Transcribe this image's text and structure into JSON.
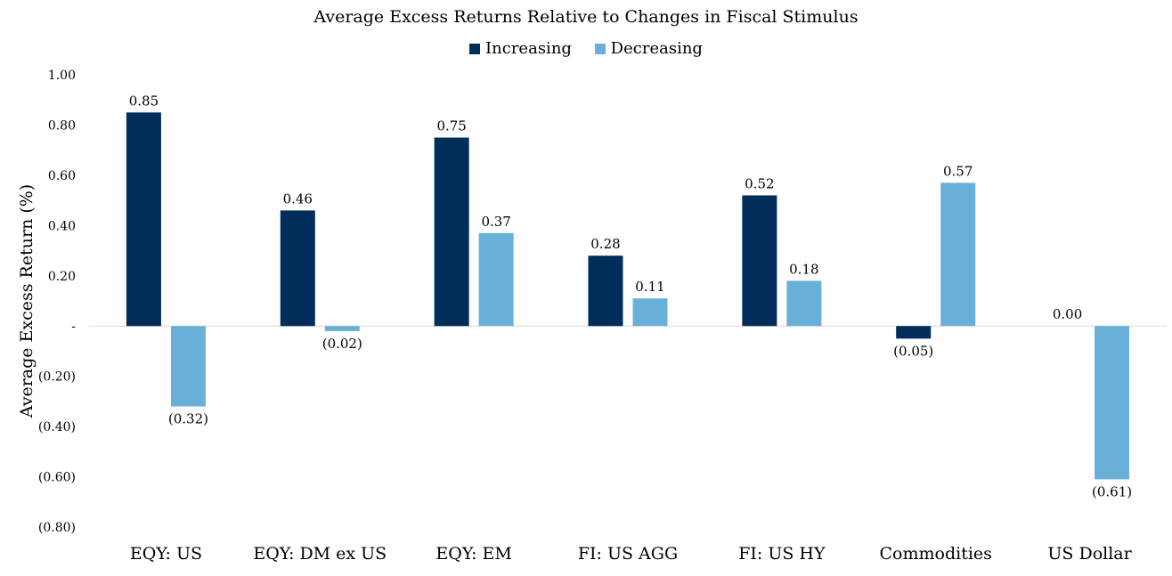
{
  "chart_data": {
    "type": "bar",
    "title": "Average Excess Returns Relative to Changes in Fiscal Stimulus",
    "ylabel": "Average Excess Return (%)",
    "xlabel": "",
    "ylim": [
      -0.8,
      1.0
    ],
    "yticks": [
      {
        "value": 1.0,
        "label": "1.00"
      },
      {
        "value": 0.8,
        "label": "0.80"
      },
      {
        "value": 0.6,
        "label": "0.60"
      },
      {
        "value": 0.4,
        "label": "0.40"
      },
      {
        "value": 0.2,
        "label": "0.20"
      },
      {
        "value": 0.0,
        "label": "-"
      },
      {
        "value": -0.2,
        "label": "(0.20)"
      },
      {
        "value": -0.4,
        "label": "(0.40)"
      },
      {
        "value": -0.6,
        "label": "(0.60)"
      },
      {
        "value": -0.8,
        "label": "(0.80)"
      }
    ],
    "grid": false,
    "legend_position": "top-center",
    "categories": [
      "EQY: US",
      "EQY: DM ex US",
      "EQY: EM",
      "FI: US AGG",
      "FI: US HY",
      "Commodities",
      "US Dollar"
    ],
    "series": [
      {
        "name": "Increasing",
        "color": "#002d5a",
        "values": [
          0.85,
          0.46,
          0.75,
          0.28,
          0.52,
          -0.05,
          0.0
        ],
        "labels": [
          "0.85",
          "0.46",
          "0.75",
          "0.28",
          "0.52",
          "(0.05)",
          "0.00"
        ]
      },
      {
        "name": "Decreasing",
        "color": "#69b0d8",
        "values": [
          -0.32,
          -0.02,
          0.37,
          0.11,
          0.18,
          0.57,
          -0.61
        ],
        "labels": [
          "(0.32)",
          "(0.02)",
          "0.37",
          "0.11",
          "0.18",
          "0.57",
          "(0.61)"
        ]
      }
    ]
  }
}
